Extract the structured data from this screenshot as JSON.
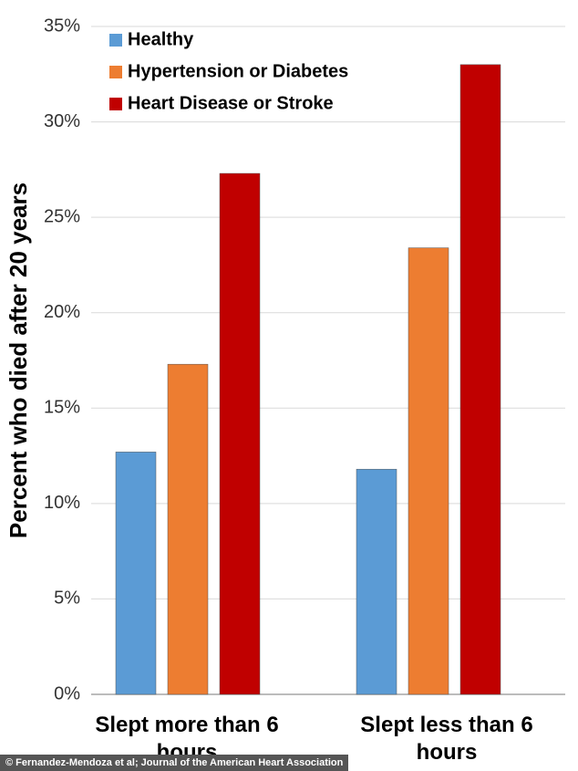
{
  "chart_data": {
    "type": "bar",
    "y_label": "Percent who died after 20 years",
    "categories": [
      "Slept more than 6 hours",
      "Slept less than 6 hours"
    ],
    "series": [
      {
        "name": "Healthy",
        "color": "#5b9bd5",
        "values": [
          12.7,
          11.8
        ]
      },
      {
        "name": "Hypertension or Diabetes",
        "color": "#ed7d31",
        "values": [
          17.3,
          23.4
        ]
      },
      {
        "name": "Heart Disease or Stroke",
        "color": "#c00000",
        "values": [
          27.3,
          33.0
        ]
      }
    ],
    "ylim": [
      0,
      35
    ],
    "yticks": [
      {
        "value": 0,
        "label": "0%"
      },
      {
        "value": 5,
        "label": "5%"
      },
      {
        "value": 10,
        "label": "10%"
      },
      {
        "value": 15,
        "label": "15%"
      },
      {
        "value": 20,
        "label": "20%"
      },
      {
        "value": 25,
        "label": "25%"
      },
      {
        "value": 30,
        "label": "30%"
      },
      {
        "value": 35,
        "label": "35%"
      }
    ],
    "grid": true,
    "legend": "upper left",
    "credit": "© Fernandez-Mendoza et al; Journal of the American Heart Association"
  }
}
